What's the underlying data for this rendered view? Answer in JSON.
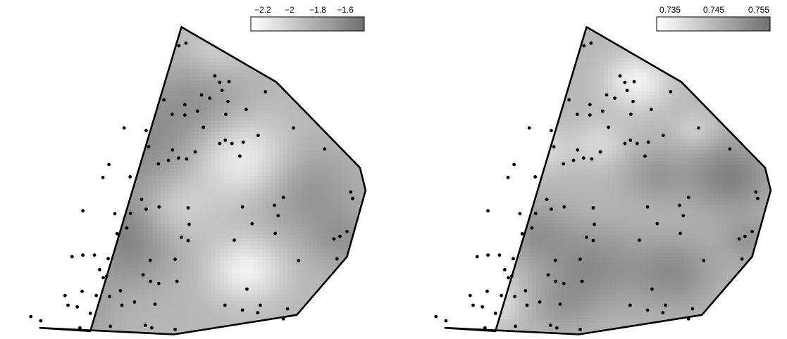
{
  "chart_data": [
    {
      "type": "heatmap",
      "title": "",
      "xlabel": "",
      "ylabel": "",
      "grid": false,
      "legend_position": "top-right",
      "colorbar": {
        "min": -2.3,
        "max": -1.5,
        "ticks": [
          -2.2,
          -2,
          -1.8,
          -1.6
        ],
        "tick_labels": [
          "−2.2",
          "−2",
          "−1.8",
          "−1.6"
        ],
        "low_color": "#ffffff",
        "high_color": "#707070"
      },
      "boundary": [
        [
          0.22,
          0.02
        ],
        [
          0.465,
          0.96
        ],
        [
          0.72,
          0.79
        ],
        [
          0.945,
          0.525
        ],
        [
          0.96,
          0.455
        ],
        [
          0.91,
          0.25
        ],
        [
          0.775,
          0.07
        ],
        [
          0.445,
          0.01
        ],
        [
          0.085,
          0.03
        ]
      ],
      "hot_spots": [
        [
          0.3,
          0.3,
          0.1,
          0.9
        ],
        [
          0.35,
          0.6,
          0.12,
          0.7
        ],
        [
          0.15,
          0.08,
          0.08,
          0.6
        ],
        [
          0.8,
          0.45,
          0.1,
          0.6
        ],
        [
          0.52,
          0.74,
          0.09,
          0.5
        ],
        [
          0.9,
          0.3,
          0.06,
          0.5
        ]
      ],
      "cold_spots": [
        [
          0.63,
          0.55,
          0.09,
          0.9
        ],
        [
          0.64,
          0.21,
          0.07,
          0.9
        ],
        [
          0.45,
          0.4,
          0.07,
          0.5
        ],
        [
          0.56,
          0.88,
          0.06,
          0.4
        ],
        [
          0.2,
          0.26,
          0.06,
          0.4
        ]
      ],
      "points": [
        [
          0.458,
          0.902
        ],
        [
          0.477,
          0.91
        ],
        [
          0.418,
          0.735
        ],
        [
          0.474,
          0.688
        ],
        [
          0.555,
          0.809
        ],
        [
          0.568,
          0.789
        ],
        [
          0.593,
          0.791
        ],
        [
          0.574,
          0.764
        ],
        [
          0.519,
          0.75
        ],
        [
          0.691,
          0.76
        ],
        [
          0.44,
          0.69
        ],
        [
          0.474,
          0.72
        ],
        [
          0.508,
          0.7
        ],
        [
          0.541,
          0.74
        ],
        [
          0.59,
          0.73
        ],
        [
          0.639,
          0.705
        ],
        [
          0.766,
          0.648
        ],
        [
          0.311,
          0.648
        ],
        [
          0.37,
          0.64
        ],
        [
          0.524,
          0.65
        ],
        [
          0.584,
          0.69
        ],
        [
          0.583,
          0.61
        ],
        [
          0.671,
          0.625
        ],
        [
          0.377,
          0.59
        ],
        [
          0.441,
          0.58
        ],
        [
          0.502,
          0.574
        ],
        [
          0.403,
          0.537
        ],
        [
          0.43,
          0.548
        ],
        [
          0.457,
          0.555
        ],
        [
          0.479,
          0.552
        ],
        [
          0.568,
          0.6
        ],
        [
          0.601,
          0.6
        ],
        [
          0.631,
          0.604
        ],
        [
          0.622,
          0.561
        ],
        [
          0.85,
          0.583
        ],
        [
          0.27,
          0.535
        ],
        [
          0.254,
          0.495
        ],
        [
          0.327,
          0.497
        ],
        [
          0.92,
          0.45
        ],
        [
          0.925,
          0.43
        ],
        [
          0.358,
          0.427
        ],
        [
          0.739,
          0.433
        ],
        [
          0.715,
          0.409
        ],
        [
          0.2,
          0.392
        ],
        [
          0.286,
          0.383
        ],
        [
          0.328,
          0.384
        ],
        [
          0.37,
          0.397
        ],
        [
          0.405,
          0.404
        ],
        [
          0.483,
          0.401
        ],
        [
          0.725,
          0.377
        ],
        [
          0.629,
          0.404
        ],
        [
          0.486,
          0.35
        ],
        [
          0.655,
          0.352
        ],
        [
          0.91,
          0.328
        ],
        [
          0.891,
          0.313
        ],
        [
          0.875,
          0.305
        ],
        [
          0.318,
          0.339
        ],
        [
          0.292,
          0.321
        ],
        [
          0.465,
          0.31
        ],
        [
          0.483,
          0.3
        ],
        [
          0.607,
          0.301
        ],
        [
          0.717,
          0.322
        ],
        [
          0.78,
          0.238
        ],
        [
          0.883,
          0.243
        ],
        [
          0.171,
          0.25
        ],
        [
          0.2,
          0.255
        ],
        [
          0.231,
          0.255
        ],
        [
          0.268,
          0.244
        ],
        [
          0.381,
          0.239
        ],
        [
          0.448,
          0.242
        ],
        [
          0.245,
          0.21
        ],
        [
          0.264,
          0.19
        ],
        [
          0.362,
          0.194
        ],
        [
          0.382,
          0.174
        ],
        [
          0.404,
          0.167
        ],
        [
          0.453,
          0.174
        ],
        [
          0.301,
          0.145
        ],
        [
          0.641,
          0.15
        ],
        [
          0.152,
          0.13
        ],
        [
          0.198,
          0.143
        ],
        [
          0.236,
          0.13
        ],
        [
          0.272,
          0.127
        ],
        [
          0.305,
          0.1
        ],
        [
          0.339,
          0.11
        ],
        [
          0.394,
          0.103
        ],
        [
          0.582,
          0.1
        ],
        [
          0.16,
          0.1
        ],
        [
          0.185,
          0.095
        ],
        [
          0.22,
          0.075
        ],
        [
          0.677,
          0.1
        ],
        [
          0.75,
          0.089
        ],
        [
          0.629,
          0.085
        ],
        [
          0.67,
          0.077
        ],
        [
          0.739,
          0.058
        ],
        [
          0.06,
          0.065
        ],
        [
          0.087,
          0.052
        ],
        [
          0.192,
          0.03
        ],
        [
          0.274,
          0.035
        ],
        [
          0.368,
          0.038
        ],
        [
          0.385,
          0.03
        ],
        [
          0.448,
          0.025
        ],
        [
          0.255,
          0.185
        ]
      ]
    },
    {
      "type": "heatmap",
      "title": "",
      "xlabel": "",
      "ylabel": "",
      "grid": false,
      "legend_position": "top-right",
      "colorbar": {
        "min": 0.731,
        "max": 0.758,
        "ticks": [
          0.735,
          0.745,
          0.755
        ],
        "tick_labels": [
          "0.735",
          "0.745",
          "0.755"
        ],
        "low_color": "#ffffff",
        "high_color": "#707070"
      },
      "boundary": [
        [
          0.22,
          0.02
        ],
        [
          0.465,
          0.96
        ],
        [
          0.72,
          0.79
        ],
        [
          0.945,
          0.525
        ],
        [
          0.96,
          0.455
        ],
        [
          0.91,
          0.25
        ],
        [
          0.775,
          0.07
        ],
        [
          0.445,
          0.01
        ],
        [
          0.085,
          0.03
        ]
      ],
      "hot_spots": [
        [
          0.85,
          0.5,
          0.08,
          0.9
        ],
        [
          0.48,
          0.22,
          0.09,
          0.7
        ],
        [
          0.32,
          0.32,
          0.07,
          0.6
        ],
        [
          0.7,
          0.2,
          0.08,
          0.7
        ],
        [
          0.65,
          0.5,
          0.06,
          0.5
        ],
        [
          0.4,
          0.1,
          0.06,
          0.4
        ],
        [
          0.9,
          0.3,
          0.05,
          0.5
        ]
      ],
      "cold_spots": [
        [
          0.6,
          0.79,
          0.06,
          0.9
        ],
        [
          0.15,
          0.22,
          0.08,
          0.6
        ],
        [
          0.35,
          0.58,
          0.05,
          0.5
        ],
        [
          0.5,
          0.6,
          0.05,
          0.5
        ],
        [
          0.22,
          0.1,
          0.05,
          0.5
        ],
        [
          0.76,
          0.64,
          0.04,
          0.4
        ]
      ],
      "points": [
        [
          0.458,
          0.902
        ],
        [
          0.477,
          0.91
        ],
        [
          0.418,
          0.735
        ],
        [
          0.474,
          0.688
        ],
        [
          0.555,
          0.809
        ],
        [
          0.568,
          0.789
        ],
        [
          0.593,
          0.791
        ],
        [
          0.574,
          0.764
        ],
        [
          0.519,
          0.75
        ],
        [
          0.691,
          0.76
        ],
        [
          0.44,
          0.69
        ],
        [
          0.474,
          0.72
        ],
        [
          0.508,
          0.7
        ],
        [
          0.541,
          0.74
        ],
        [
          0.59,
          0.73
        ],
        [
          0.639,
          0.705
        ],
        [
          0.766,
          0.648
        ],
        [
          0.311,
          0.648
        ],
        [
          0.37,
          0.64
        ],
        [
          0.524,
          0.65
        ],
        [
          0.584,
          0.69
        ],
        [
          0.583,
          0.61
        ],
        [
          0.671,
          0.625
        ],
        [
          0.377,
          0.59
        ],
        [
          0.441,
          0.58
        ],
        [
          0.502,
          0.574
        ],
        [
          0.403,
          0.537
        ],
        [
          0.43,
          0.548
        ],
        [
          0.457,
          0.555
        ],
        [
          0.479,
          0.552
        ],
        [
          0.568,
          0.6
        ],
        [
          0.601,
          0.6
        ],
        [
          0.631,
          0.604
        ],
        [
          0.622,
          0.561
        ],
        [
          0.85,
          0.583
        ],
        [
          0.27,
          0.535
        ],
        [
          0.254,
          0.495
        ],
        [
          0.327,
          0.497
        ],
        [
          0.92,
          0.45
        ],
        [
          0.925,
          0.43
        ],
        [
          0.358,
          0.427
        ],
        [
          0.739,
          0.433
        ],
        [
          0.715,
          0.409
        ],
        [
          0.2,
          0.392
        ],
        [
          0.286,
          0.383
        ],
        [
          0.328,
          0.384
        ],
        [
          0.37,
          0.397
        ],
        [
          0.405,
          0.404
        ],
        [
          0.483,
          0.401
        ],
        [
          0.725,
          0.377
        ],
        [
          0.629,
          0.404
        ],
        [
          0.486,
          0.35
        ],
        [
          0.655,
          0.352
        ],
        [
          0.91,
          0.328
        ],
        [
          0.891,
          0.313
        ],
        [
          0.875,
          0.305
        ],
        [
          0.318,
          0.339
        ],
        [
          0.292,
          0.321
        ],
        [
          0.465,
          0.31
        ],
        [
          0.483,
          0.3
        ],
        [
          0.607,
          0.301
        ],
        [
          0.717,
          0.322
        ],
        [
          0.78,
          0.238
        ],
        [
          0.883,
          0.243
        ],
        [
          0.171,
          0.25
        ],
        [
          0.2,
          0.255
        ],
        [
          0.231,
          0.255
        ],
        [
          0.268,
          0.244
        ],
        [
          0.381,
          0.239
        ],
        [
          0.448,
          0.242
        ],
        [
          0.245,
          0.21
        ],
        [
          0.264,
          0.19
        ],
        [
          0.362,
          0.194
        ],
        [
          0.382,
          0.174
        ],
        [
          0.404,
          0.167
        ],
        [
          0.453,
          0.174
        ],
        [
          0.301,
          0.145
        ],
        [
          0.641,
          0.15
        ],
        [
          0.152,
          0.13
        ],
        [
          0.198,
          0.143
        ],
        [
          0.236,
          0.13
        ],
        [
          0.272,
          0.127
        ],
        [
          0.305,
          0.1
        ],
        [
          0.339,
          0.11
        ],
        [
          0.394,
          0.103
        ],
        [
          0.582,
          0.1
        ],
        [
          0.16,
          0.1
        ],
        [
          0.185,
          0.095
        ],
        [
          0.22,
          0.075
        ],
        [
          0.677,
          0.1
        ],
        [
          0.75,
          0.089
        ],
        [
          0.629,
          0.085
        ],
        [
          0.67,
          0.077
        ],
        [
          0.739,
          0.058
        ],
        [
          0.06,
          0.065
        ],
        [
          0.087,
          0.052
        ],
        [
          0.192,
          0.03
        ],
        [
          0.274,
          0.035
        ],
        [
          0.368,
          0.038
        ],
        [
          0.385,
          0.03
        ],
        [
          0.448,
          0.025
        ],
        [
          0.255,
          0.185
        ]
      ]
    }
  ]
}
